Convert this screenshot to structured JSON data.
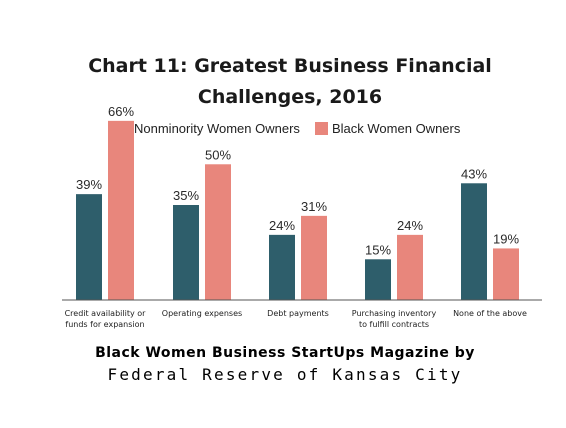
{
  "chart_data": {
    "type": "bar",
    "title_lines": [
      "Chart 11: Greatest Business Financial",
      "Challenges, 2016"
    ],
    "categories": [
      [
        "Credit availability or",
        "funds for expansion"
      ],
      [
        "Operating expenses"
      ],
      [
        "Debt payments"
      ],
      [
        "Purchasing inventory",
        "to fulfill contracts"
      ],
      [
        "None of the above"
      ]
    ],
    "series": [
      {
        "name": "Nonminority Women Owners",
        "color": "#2e5e6b",
        "values": [
          39,
          35,
          24,
          15,
          43
        ],
        "labels": [
          "39%",
          "35%",
          "24%",
          "15%",
          "43%"
        ]
      },
      {
        "name": "Black Women Owners",
        "color": "#e8867c",
        "values": [
          66,
          50,
          31,
          24,
          19
        ],
        "labels": [
          "66%",
          "50%",
          "31%",
          "24%",
          "19%"
        ]
      }
    ],
    "ylim": [
      0,
      70
    ],
    "grid": false,
    "legend_position": "top-center",
    "axis_color": "#555555"
  },
  "credits": {
    "line1": "Black Women Business StartUps Magazine by",
    "line2": "Federal Reserve of Kansas City"
  }
}
